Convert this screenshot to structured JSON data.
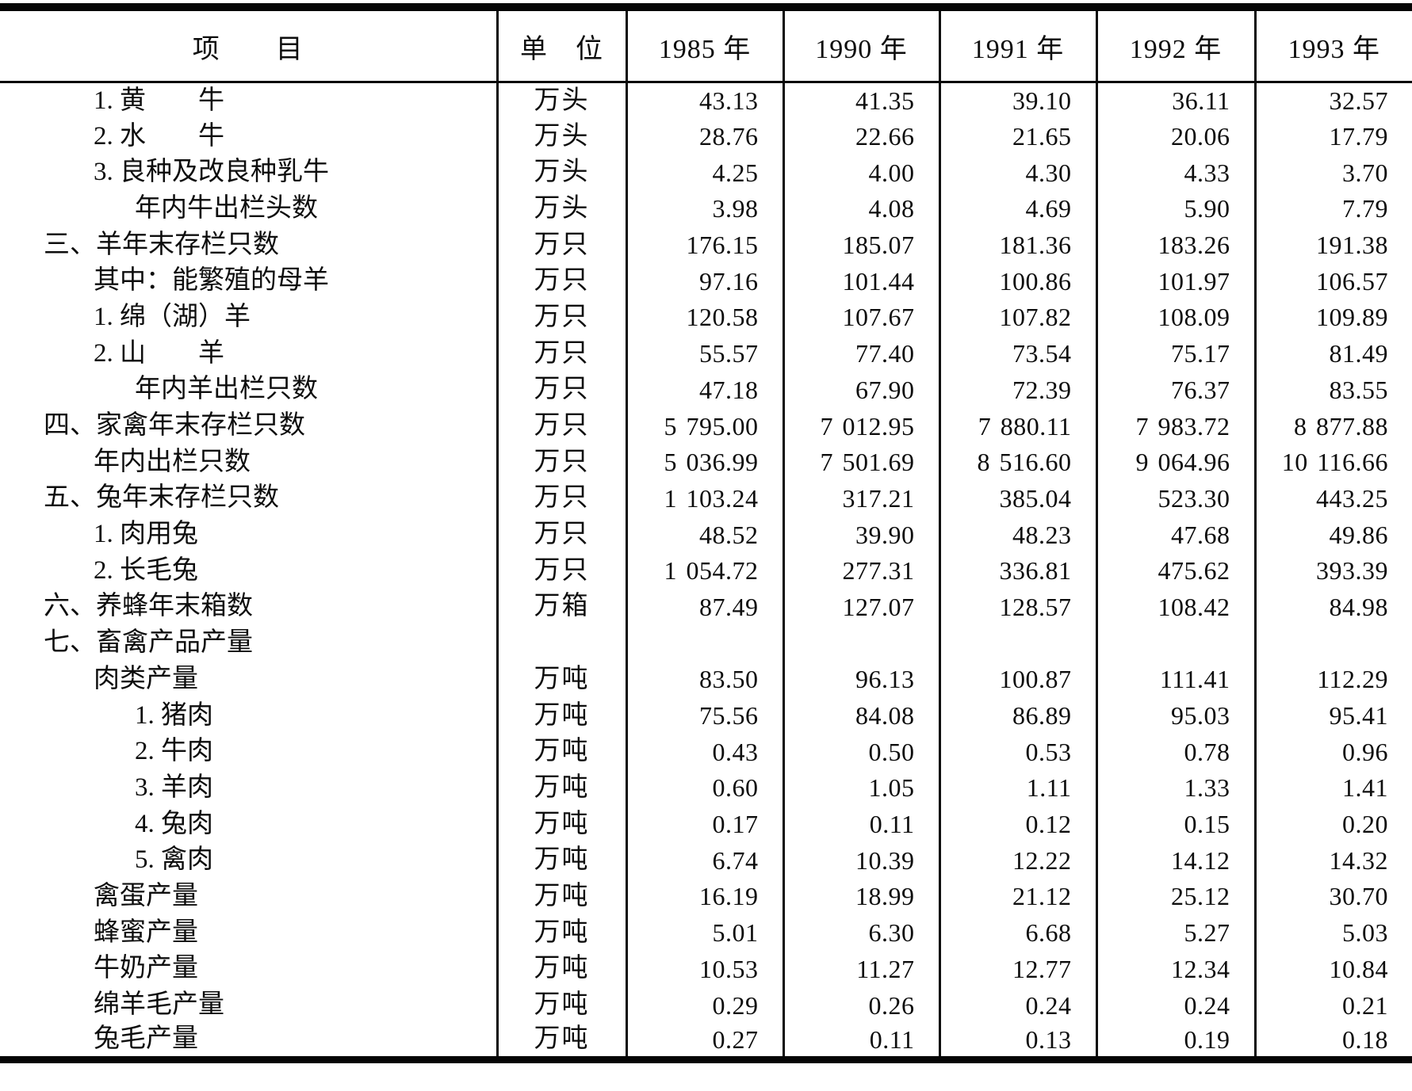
{
  "table": {
    "header": {
      "item": "项　　目",
      "unit": "单　位",
      "years": [
        "1985 年",
        "1990 年",
        "1991 年",
        "1992 年",
        "1993 年"
      ]
    },
    "rows": [
      {
        "label": "1. 黄　　牛",
        "indent": 2,
        "unit": "万头",
        "values": [
          "43.13",
          "41.35",
          "39.10",
          "36.11",
          "32.57"
        ]
      },
      {
        "label": "2. 水　　牛",
        "indent": 2,
        "unit": "万头",
        "values": [
          "28.76",
          "22.66",
          "21.65",
          "20.06",
          "17.79"
        ]
      },
      {
        "label": "3. 良种及改良种乳牛",
        "indent": 2,
        "unit": "万头",
        "values": [
          "4.25",
          "4.00",
          "4.30",
          "4.33",
          "3.70"
        ]
      },
      {
        "label": "年内牛出栏头数",
        "indent": 3,
        "unit": "万头",
        "values": [
          "3.98",
          "4.08",
          "4.69",
          "5.90",
          "7.79"
        ]
      },
      {
        "label": "三、羊年末存栏只数",
        "indent": 1,
        "unit": "万只",
        "values": [
          "176.15",
          "185.07",
          "181.36",
          "183.26",
          "191.38"
        ]
      },
      {
        "label": "其中：能繁殖的母羊",
        "indent": 2,
        "unit": "万只",
        "values": [
          "97.16",
          "101.44",
          "100.86",
          "101.97",
          "106.57"
        ]
      },
      {
        "label": "1. 绵（湖）羊",
        "indent": 2,
        "unit": "万只",
        "values": [
          "120.58",
          "107.67",
          "107.82",
          "108.09",
          "109.89"
        ]
      },
      {
        "label": "2. 山　　羊",
        "indent": 2,
        "unit": "万只",
        "values": [
          "55.57",
          "77.40",
          "73.54",
          "75.17",
          "81.49"
        ]
      },
      {
        "label": "年内羊出栏只数",
        "indent": 3,
        "unit": "万只",
        "values": [
          "47.18",
          "67.90",
          "72.39",
          "76.37",
          "83.55"
        ]
      },
      {
        "label": "四、家禽年末存栏只数",
        "indent": 1,
        "unit": "万只",
        "values": [
          "5 795.00",
          "7 012.95",
          "7 880.11",
          "7 983.72",
          "8 877.88"
        ]
      },
      {
        "label": "年内出栏只数",
        "indent": 2,
        "unit": "万只",
        "values": [
          "5 036.99",
          "7 501.69",
          "8 516.60",
          "9 064.96",
          "10 116.66"
        ]
      },
      {
        "label": "五、兔年末存栏只数",
        "indent": 1,
        "unit": "万只",
        "values": [
          "1 103.24",
          "317.21",
          "385.04",
          "523.30",
          "443.25"
        ]
      },
      {
        "label": "1. 肉用兔",
        "indent": 2,
        "unit": "万只",
        "values": [
          "48.52",
          "39.90",
          "48.23",
          "47.68",
          "49.86"
        ]
      },
      {
        "label": "2. 长毛兔",
        "indent": 2,
        "unit": "万只",
        "values": [
          "1 054.72",
          "277.31",
          "336.81",
          "475.62",
          "393.39"
        ]
      },
      {
        "label": "六、养蜂年末箱数",
        "indent": 1,
        "unit": "万箱",
        "values": [
          "87.49",
          "127.07",
          "128.57",
          "108.42",
          "84.98"
        ]
      },
      {
        "label": "七、畜禽产品产量",
        "indent": 1,
        "unit": "",
        "values": [
          "",
          "",
          "",
          "",
          ""
        ]
      },
      {
        "label": "肉类产量",
        "indent": 2,
        "unit": "万吨",
        "values": [
          "83.50",
          "96.13",
          "100.87",
          "111.41",
          "112.29"
        ]
      },
      {
        "label": "1. 猪肉",
        "indent": 3,
        "unit": "万吨",
        "values": [
          "75.56",
          "84.08",
          "86.89",
          "95.03",
          "95.41"
        ]
      },
      {
        "label": "2. 牛肉",
        "indent": 3,
        "unit": "万吨",
        "values": [
          "0.43",
          "0.50",
          "0.53",
          "0.78",
          "0.96"
        ]
      },
      {
        "label": "3. 羊肉",
        "indent": 3,
        "unit": "万吨",
        "values": [
          "0.60",
          "1.05",
          "1.11",
          "1.33",
          "1.41"
        ]
      },
      {
        "label": "4. 兔肉",
        "indent": 3,
        "unit": "万吨",
        "values": [
          "0.17",
          "0.11",
          "0.12",
          "0.15",
          "0.20"
        ]
      },
      {
        "label": "5. 禽肉",
        "indent": 3,
        "unit": "万吨",
        "values": [
          "6.74",
          "10.39",
          "12.22",
          "14.12",
          "14.32"
        ]
      },
      {
        "label": "禽蛋产量",
        "indent": 2,
        "unit": "万吨",
        "values": [
          "16.19",
          "18.99",
          "21.12",
          "25.12",
          "30.70"
        ]
      },
      {
        "label": "蜂蜜产量",
        "indent": 2,
        "unit": "万吨",
        "values": [
          "5.01",
          "6.30",
          "6.68",
          "5.27",
          "5.03"
        ]
      },
      {
        "label": "牛奶产量",
        "indent": 2,
        "unit": "万吨",
        "values": [
          "10.53",
          "11.27",
          "12.77",
          "12.34",
          "10.84"
        ]
      },
      {
        "label": "绵羊毛产量",
        "indent": 2,
        "unit": "万吨",
        "values": [
          "0.29",
          "0.26",
          "0.24",
          "0.24",
          "0.21"
        ]
      },
      {
        "label": "兔毛产量",
        "indent": 2,
        "unit": "万吨",
        "values": [
          "0.27",
          "0.11",
          "0.13",
          "0.19",
          "0.18"
        ]
      }
    ]
  }
}
